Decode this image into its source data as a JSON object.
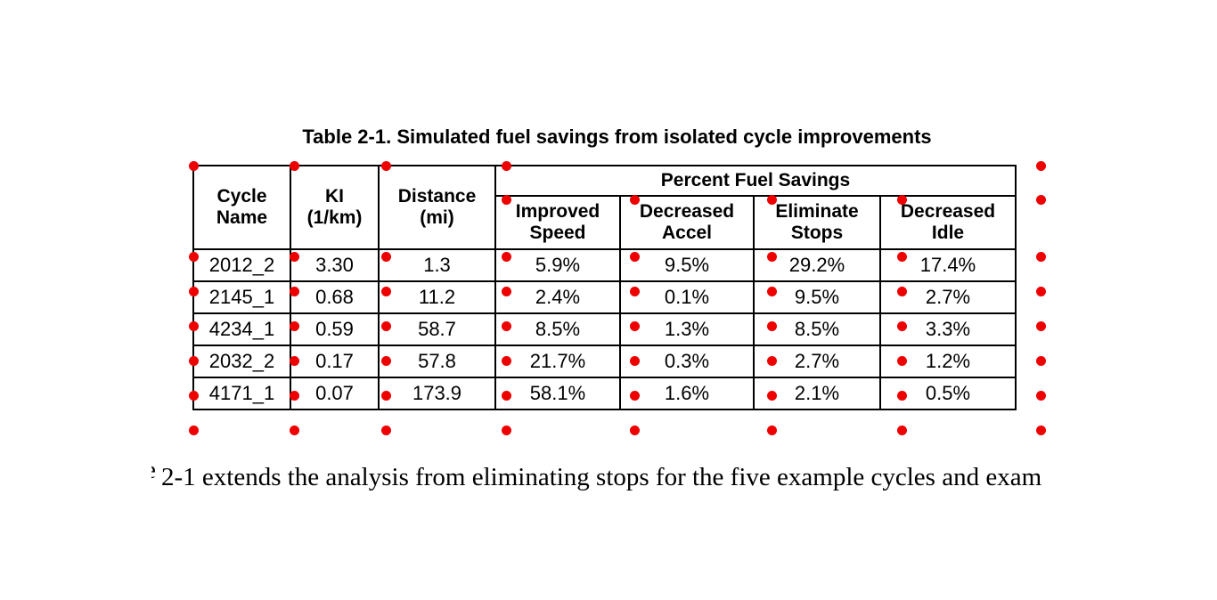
{
  "title": "Table 2-1. Simulated fuel savings from isolated cycle improvements",
  "table": {
    "headers": [
      {
        "l1": "Cycle",
        "l2": "Name"
      },
      {
        "l1": "KI",
        "l2": "(1/km)"
      },
      {
        "l1": "Distance",
        "l2": "(mi)"
      }
    ],
    "group_header": "Percent Fuel Savings",
    "sub_headers": [
      {
        "l1": "Improved",
        "l2": "Speed"
      },
      {
        "l1": "Decreased",
        "l2": "Accel"
      },
      {
        "l1": "Eliminate",
        "l2": "Stops"
      },
      {
        "l1": "Decreased",
        "l2": "Idle"
      }
    ],
    "rows": [
      [
        "2012_2",
        "3.30",
        "1.3",
        "5.9%",
        "9.5%",
        "29.2%",
        "17.4%"
      ],
      [
        "2145_1",
        "0.68",
        "11.2",
        "2.4%",
        "0.1%",
        "9.5%",
        "2.7%"
      ],
      [
        "4234_1",
        "0.59",
        "58.7",
        "8.5%",
        "1.3%",
        "8.5%",
        "3.3%"
      ],
      [
        "2032_2",
        "0.17",
        "57.8",
        "21.7%",
        "0.3%",
        "2.7%",
        "1.2%"
      ],
      [
        "4171_1",
        "0.07",
        "173.9",
        "58.1%",
        "1.6%",
        "2.1%",
        "0.5%"
      ]
    ]
  },
  "body": {
    "fragment": "e",
    "text": "2-1 extends the analysis from eliminating stops for the five example cycles and exam"
  },
  "colors": {
    "marker_red": "#ee0000",
    "line_black": "#000000"
  }
}
